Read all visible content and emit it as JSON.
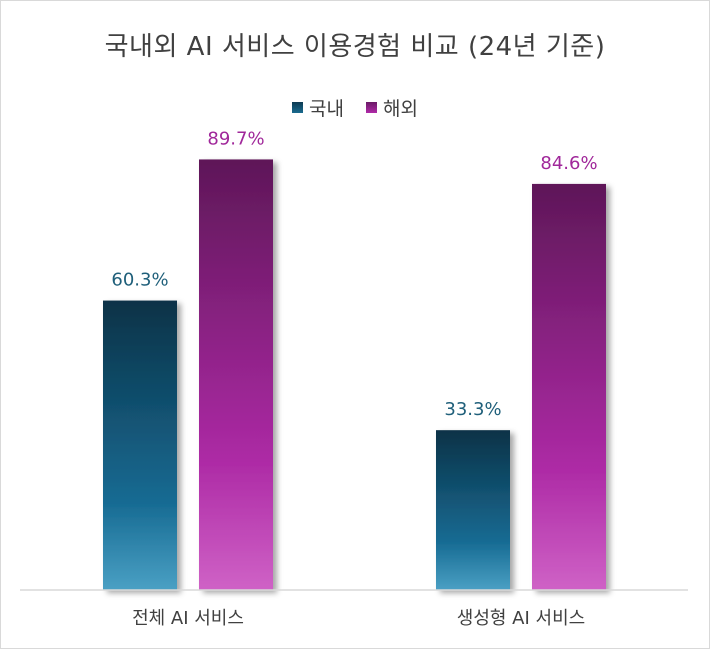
{
  "chart_data": {
    "type": "bar",
    "title": "국내외 AI 서비스 이용경험 비교 (24년 기준)",
    "categories": [
      "전체 AI 서비스",
      "생성형 AI 서비스"
    ],
    "series": [
      {
        "name": "국내",
        "values": [
          60.3,
          33.3
        ],
        "labels": [
          "60.3%",
          "33.3%"
        ],
        "color": "#1a6b8f",
        "label_color": "#1f5f7a"
      },
      {
        "name": "해외",
        "values": [
          89.7,
          84.6
        ],
        "labels": [
          "89.7%",
          "84.6%"
        ],
        "color": "#a0279a",
        "label_color": "#a0279a"
      }
    ],
    "ylim": [
      0,
      100
    ],
    "grid": false,
    "legend_position": "top"
  }
}
